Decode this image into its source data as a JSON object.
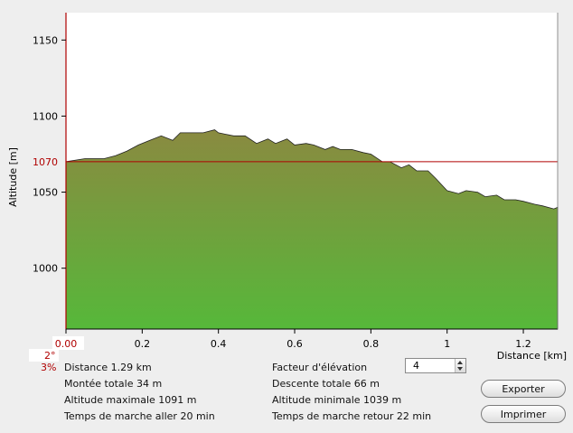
{
  "chart_data": {
    "type": "area",
    "xlabel": "Distance [km]",
    "ylabel": "Altitude [m]",
    "xlim": [
      0,
      1.29
    ],
    "ylim": [
      960,
      1168
    ],
    "x_ticks": [
      "0.00",
      "0.2",
      "0.4",
      "0.6",
      "0.8",
      "1",
      "1.2"
    ],
    "x_tick_values": [
      0,
      0.2,
      0.4,
      0.6,
      0.8,
      1.0,
      1.2
    ],
    "y_ticks": [
      "1000",
      "1050",
      "1100",
      "1150"
    ],
    "y_tick_values": [
      1000,
      1050,
      1100,
      1150
    ],
    "reference_line": {
      "value": 1070,
      "label": "1070",
      "color": "#b00000"
    },
    "side_labels": {
      "angle": "2°",
      "slope": "3%"
    },
    "series": [
      {
        "x": [
          0.0,
          0.05,
          0.1,
          0.13,
          0.16,
          0.19,
          0.22,
          0.25,
          0.28,
          0.3,
          0.33,
          0.36,
          0.39,
          0.4,
          0.42,
          0.44,
          0.47,
          0.5,
          0.53,
          0.55,
          0.58,
          0.6,
          0.63,
          0.65,
          0.68,
          0.7,
          0.72,
          0.75,
          0.78,
          0.8,
          0.83,
          0.85,
          0.88,
          0.9,
          0.92,
          0.95,
          0.97,
          1.0,
          1.03,
          1.05,
          1.08,
          1.1,
          1.13,
          1.15,
          1.18,
          1.2,
          1.23,
          1.25,
          1.28,
          1.29
        ],
        "y": [
          1070,
          1072,
          1072,
          1074,
          1077,
          1081,
          1084,
          1087,
          1084,
          1089,
          1089,
          1089,
          1091,
          1089,
          1088,
          1087,
          1087,
          1082,
          1085,
          1082,
          1085,
          1081,
          1082,
          1081,
          1078,
          1080,
          1078,
          1078,
          1076,
          1075,
          1070,
          1070,
          1066,
          1068,
          1064,
          1064,
          1059,
          1051,
          1049,
          1051,
          1050,
          1047,
          1048,
          1045,
          1045,
          1044,
          1042,
          1041,
          1039,
          1040
        ]
      }
    ]
  },
  "stats": {
    "distance": "Distance 1.29 km",
    "ascent": "Montée totale  34 m",
    "max_alt": "Altitude maximale  1091 m",
    "time_out": "Temps de marche aller  20 min",
    "factor_label": "Facteur d'élévation",
    "descent": "Descente totale  66 m",
    "min_alt": "Altitude minimale  1039 m",
    "time_back": "Temps de marche retour  22 min"
  },
  "controls": {
    "factor_value": "4",
    "export_label": "Exporter",
    "print_label": "Imprimer"
  },
  "colors": {
    "fill_top": "#8a8a40",
    "fill_bottom": "#56b83a",
    "axis_red": "#b00000"
  }
}
